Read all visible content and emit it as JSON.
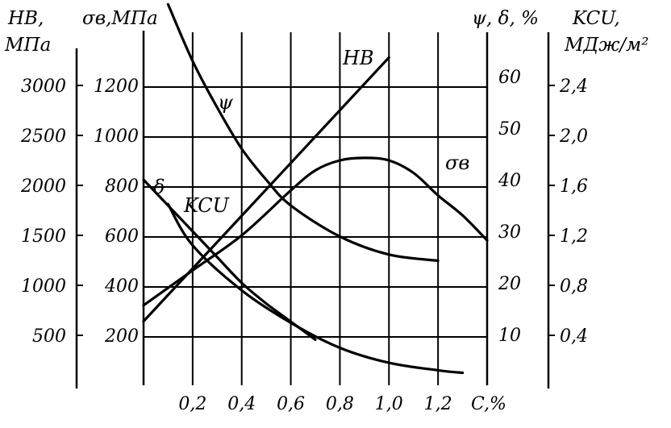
{
  "chart_data": {
    "type": "line",
    "xlabel": "C,%",
    "x_ticks": [
      "0,2",
      "0,4",
      "0,6",
      "0,8",
      "1,0",
      "1,2"
    ],
    "xlim": [
      0,
      1.4
    ],
    "axes": {
      "hb": {
        "title_line1": "HB,",
        "title_line2": "МПа",
        "ticks": [
          500,
          1000,
          1500,
          2000,
          2500,
          3000
        ],
        "ylim": [
          0,
          3000
        ]
      },
      "sigma": {
        "title": "σв,МПа",
        "ticks": [
          200,
          400,
          600,
          800,
          1000,
          1200
        ],
        "ylim": [
          0,
          1200
        ]
      },
      "psi_delta": {
        "title": "ψ, δ, %",
        "ticks": [
          10,
          20,
          30,
          40,
          50,
          60
        ],
        "ylim": [
          0,
          60
        ]
      },
      "kcu": {
        "title_line1": "KCU,",
        "title_line2": "МДж/м²",
        "ticks": [
          "0,4",
          "0,8",
          "1,2",
          "1,6",
          "2,0",
          "2,4"
        ],
        "ylim": [
          0,
          2.4
        ]
      }
    },
    "series": [
      {
        "name": "HB",
        "axis": "hb",
        "x": [
          0.0,
          1.0
        ],
        "y": [
          640,
          3280
        ]
      },
      {
        "name": "σв",
        "axis": "sigma",
        "x": [
          0.0,
          0.2,
          0.4,
          0.6,
          0.7,
          0.8,
          0.9,
          1.0,
          1.1,
          1.2,
          1.3,
          1.4
        ],
        "y": [
          320,
          460,
          600,
          780,
          860,
          900,
          910,
          900,
          850,
          760,
          680,
          580
        ]
      },
      {
        "name": "ψ",
        "axis": "psi_delta",
        "x": [
          0.1,
          0.2,
          0.3,
          0.4,
          0.5,
          0.6,
          0.8,
          1.0,
          1.2
        ],
        "y": [
          74,
          63,
          54,
          46,
          40,
          35,
          29,
          25.5,
          24.3
        ]
      },
      {
        "name": "δ",
        "axis": "psi_delta",
        "x": [
          0.0,
          0.1,
          0.2,
          0.3,
          0.4,
          0.5,
          0.6,
          0.7
        ],
        "y": [
          40,
          35,
          30,
          25,
          20,
          16,
          12.5,
          9
        ]
      },
      {
        "name": "KCU",
        "axis": "kcu",
        "x": [
          0.1,
          0.2,
          0.4,
          0.6,
          0.8,
          1.0,
          1.2,
          1.3
        ],
        "y": [
          1.45,
          1.12,
          0.76,
          0.5,
          0.3,
          0.18,
          0.12,
          0.1
        ]
      }
    ],
    "grid": true
  }
}
